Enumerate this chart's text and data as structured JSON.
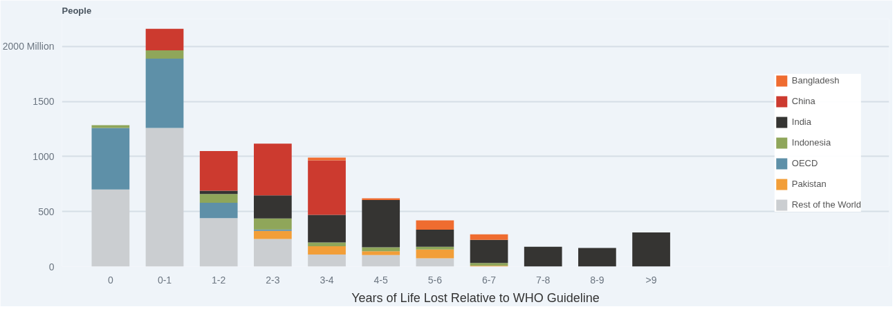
{
  "chart_data": {
    "type": "bar",
    "stacked": true,
    "ylabel": "People",
    "xlabel": "Years of Life Lost Relative to WHO Guideline",
    "categories": [
      "0",
      "0-1",
      "1-2",
      "2-3",
      "3-4",
      "4-5",
      "5-6",
      "6-7",
      "7-8",
      "8-9",
      ">9"
    ],
    "series": [
      {
        "name": "Rest of the World",
        "color": "#cbced1",
        "values": [
          700,
          1260,
          440,
          250,
          110,
          105,
          75,
          null,
          null,
          null,
          null
        ]
      },
      {
        "name": "Pakistan",
        "color": "#f29e38",
        "values": [
          null,
          null,
          null,
          75,
          75,
          35,
          80,
          8,
          null,
          null,
          null
        ]
      },
      {
        "name": "OECD",
        "color": "#5e90a8",
        "values": [
          560,
          630,
          140,
          12,
          null,
          null,
          null,
          null,
          null,
          null,
          null
        ]
      },
      {
        "name": "Indonesia",
        "color": "#8fa65a",
        "values": [
          25,
          75,
          80,
          100,
          35,
          35,
          25,
          25,
          null,
          null,
          null
        ]
      },
      {
        "name": "India",
        "color": "#353432",
        "values": [
          null,
          null,
          30,
          210,
          250,
          430,
          155,
          210,
          180,
          170,
          310
        ]
      },
      {
        "name": "China",
        "color": "#cc3a2f",
        "values": [
          null,
          195,
          360,
          470,
          495,
          null,
          null,
          null,
          null,
          null,
          null
        ]
      },
      {
        "name": "Bangladesh",
        "color": "#ef6c30",
        "values": [
          null,
          null,
          null,
          null,
          25,
          15,
          85,
          50,
          null,
          null,
          null
        ]
      }
    ],
    "ylim": [
      0,
      2250
    ],
    "yticks": [
      0,
      500,
      1000,
      1500,
      {
        "value": 2000,
        "label": "2000 Million"
      }
    ],
    "grid": "y",
    "legend": "right"
  }
}
